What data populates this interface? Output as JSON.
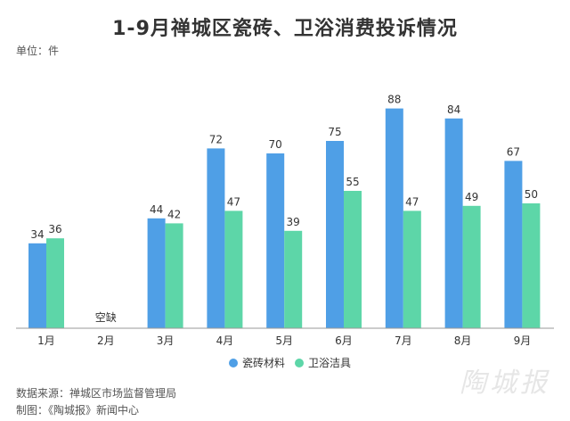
{
  "title": "1-9月禅城区瓷砖、卫浴消费投诉情况",
  "unit_label": "单位：件",
  "footer": {
    "source": "数据来源：禅城区市场监督管理局",
    "credit": "制图：《陶城报》新闻中心"
  },
  "watermark": "陶城报",
  "colors": {
    "tiles": "#4f9fe6",
    "bathroom": "#5dd6a8"
  },
  "chart_data": {
    "type": "bar",
    "categories": [
      "1月",
      "2月",
      "3月",
      "4月",
      "5月",
      "6月",
      "7月",
      "8月",
      "9月"
    ],
    "series": [
      {
        "name": "瓷砖材料",
        "values": [
          34,
          null,
          44,
          72,
          70,
          75,
          88,
          84,
          67
        ]
      },
      {
        "name": "卫浴洁具",
        "values": [
          36,
          null,
          42,
          47,
          39,
          55,
          47,
          49,
          50
        ]
      }
    ],
    "annotations": [
      {
        "category": "2月",
        "text": "空缺"
      }
    ],
    "ylim": [
      0,
      100
    ],
    "grid": false,
    "legend_position": "bottom"
  }
}
